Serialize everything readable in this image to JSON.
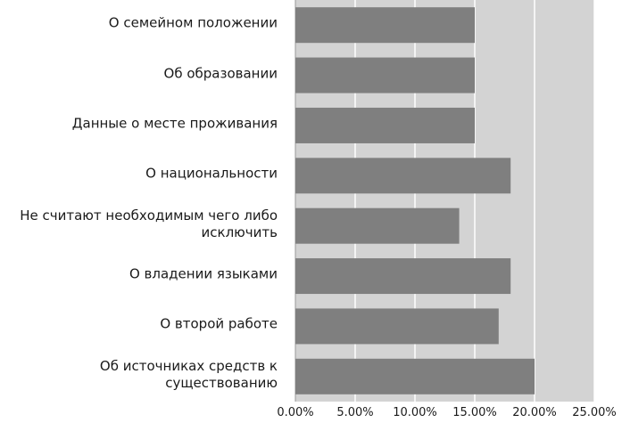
{
  "chart_data": {
    "type": "bar",
    "orientation": "horizontal",
    "categories": [
      "О семейном положении",
      "Об образовании",
      "Данные о месте проживания",
      "О национальности",
      "Не считают необходимым чего либо\nисключить",
      "О владении языками",
      "О второй работе",
      "Об источниках средств к\nсуществованию"
    ],
    "values": [
      0.15,
      0.15,
      0.15,
      0.18,
      0.137,
      0.18,
      0.17,
      0.2
    ],
    "xlim": [
      0,
      0.25
    ],
    "xticks": [
      "0.00%",
      "5.00%",
      "10.00%",
      "15.00%",
      "20.00%",
      "25.00%"
    ],
    "title": "",
    "xlabel": "",
    "ylabel": "",
    "grid": true,
    "colors": {
      "bar": "#7f7f7f",
      "plot_background": "#d3d3d3",
      "grid": "#ffffff"
    }
  }
}
